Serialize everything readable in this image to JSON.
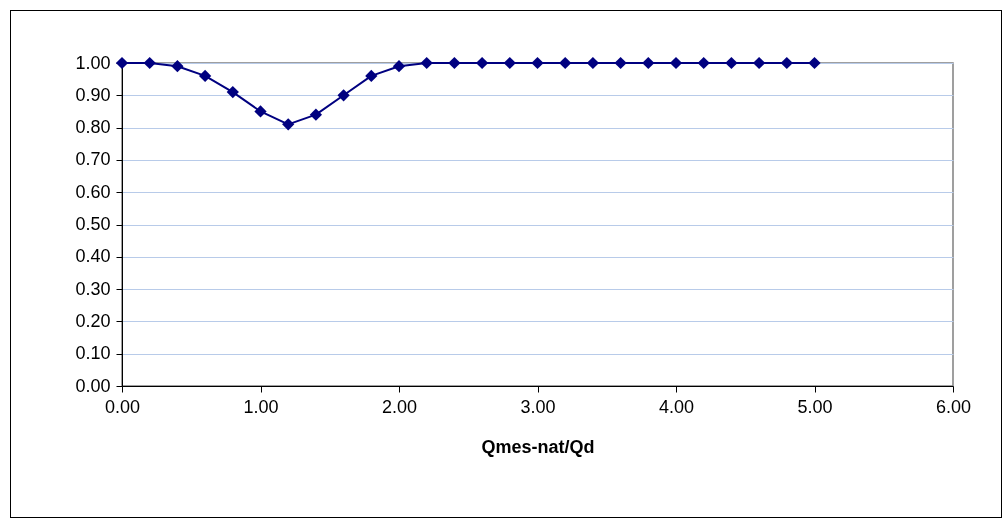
{
  "chart_data": {
    "type": "line",
    "xlabel": "Qmes-nat/Qd",
    "x": [
      0,
      0.2,
      0.4,
      0.6,
      0.8,
      1.0,
      1.2,
      1.4,
      1.6,
      1.8,
      2.0,
      2.2,
      2.4,
      2.6,
      2.8,
      3.0,
      3.2,
      3.4,
      3.6,
      3.8,
      4.0,
      4.2,
      4.4,
      4.6,
      4.8,
      5.0
    ],
    "series": [
      {
        "color": "#000080",
        "values": [
          1.0,
          1.0,
          0.99,
          0.96,
          0.91,
          0.85,
          0.81,
          0.84,
          0.9,
          0.96,
          0.99,
          1.0,
          1.0,
          1.0,
          1.0,
          1.0,
          1.0,
          1.0,
          1.0,
          1.0,
          1.0,
          1.0,
          1.0,
          1.0,
          1.0,
          1.0
        ]
      }
    ],
    "xlim": [
      0,
      6
    ],
    "xticks": [
      {
        "value": 0,
        "label": "0.00"
      },
      {
        "value": 1,
        "label": "1.00"
      },
      {
        "value": 2,
        "label": "2.00"
      },
      {
        "value": 3,
        "label": "3.00"
      },
      {
        "value": 4,
        "label": "4.00"
      },
      {
        "value": 5,
        "label": "5.00"
      },
      {
        "value": 6,
        "label": "6.00"
      }
    ],
    "ylim": [
      0,
      1
    ],
    "yticks": [
      {
        "value": 0,
        "label": "0.00"
      },
      {
        "value": 0.1,
        "label": "0.10"
      },
      {
        "value": 0.2,
        "label": "0.20"
      },
      {
        "value": 0.3,
        "label": "0.30"
      },
      {
        "value": 0.4,
        "label": "0.40"
      },
      {
        "value": 0.5,
        "label": "0.50"
      },
      {
        "value": 0.6,
        "label": "0.60"
      },
      {
        "value": 0.7,
        "label": "0.70"
      },
      {
        "value": 0.8,
        "label": "0.80"
      },
      {
        "value": 0.9,
        "label": "0.90"
      },
      {
        "value": 1,
        "label": "1.00"
      }
    ],
    "grid": "y",
    "marker": "diamond",
    "line_style": "solid",
    "legend": false
  }
}
